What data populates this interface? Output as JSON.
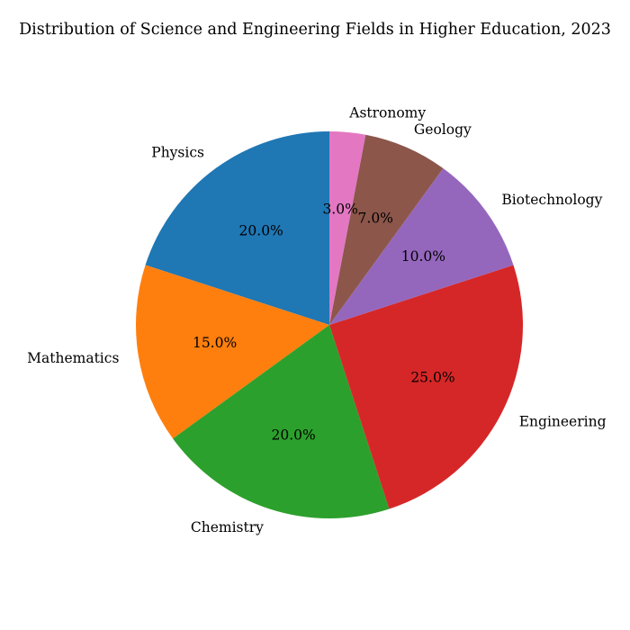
{
  "chart_data": {
    "type": "pie",
    "title": "Distribution of Science and Engineering Fields in Higher Education, 2023",
    "categories": [
      "Physics",
      "Mathematics",
      "Chemistry",
      "Engineering",
      "Biotechnology",
      "Geology",
      "Astronomy"
    ],
    "values": [
      20,
      15,
      20,
      25,
      10,
      7,
      3
    ],
    "percent_labels": [
      "20.0%",
      "15.0%",
      "20.0%",
      "25.0%",
      "10.0%",
      "7.0%",
      "3.0%"
    ],
    "colors": [
      "#1f77b4",
      "#ff7f0e",
      "#2ca02c",
      "#d62728",
      "#9467bd",
      "#8c564b",
      "#e377c2"
    ],
    "start_angle_deg": 90,
    "direction": "counterclockwise",
    "legend": "none"
  }
}
